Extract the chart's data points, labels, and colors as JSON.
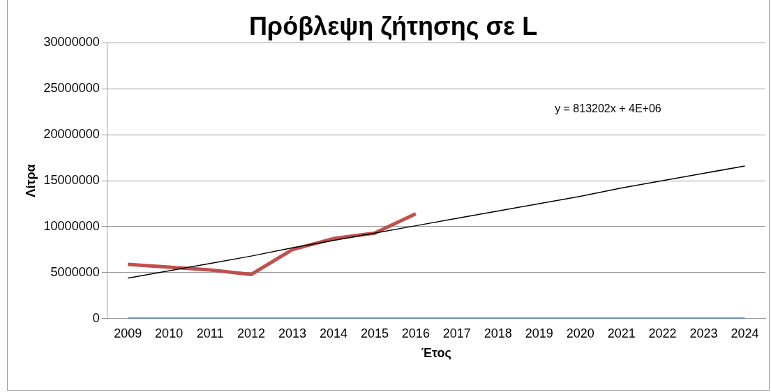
{
  "chart_data": {
    "type": "line",
    "title": "Πρόβλεψη ζήτησης σε L",
    "xlabel": "Έτος",
    "ylabel": "Λίτρα",
    "categories": [
      "2009",
      "2010",
      "2011",
      "2012",
      "2013",
      "2014",
      "2015",
      "2016",
      "2017",
      "2018",
      "2019",
      "2020",
      "2021",
      "2022",
      "2023",
      "2024"
    ],
    "series": [
      {
        "color": "#4f81bd",
        "values": [
          0,
          0,
          0,
          0,
          0,
          0,
          0,
          0,
          0,
          0,
          0,
          0,
          0,
          0,
          0,
          0
        ]
      },
      {
        "color": "#c0504d",
        "values": [
          5900000,
          5600000,
          5300000,
          4800000,
          7500000,
          8700000,
          9300000,
          11400000,
          null,
          null,
          null,
          null,
          null,
          null,
          null,
          null
        ]
      },
      {
        "color": "#000000",
        "values": [
          4400000,
          5200000,
          6000000,
          6800000,
          7700000,
          8500000,
          9300000,
          10100000,
          10900000,
          11700000,
          12500000,
          13300000,
          14200000,
          15000000,
          15800000,
          16600000
        ]
      }
    ],
    "ylim": [
      0,
      30000000
    ],
    "yticks": [
      0,
      5000000,
      10000000,
      15000000,
      20000000,
      25000000,
      30000000
    ],
    "grid": "y",
    "legend": false,
    "marker": "none",
    "line_style": "solid",
    "annotations": [
      "y = 813202x + 4E+06"
    ]
  }
}
